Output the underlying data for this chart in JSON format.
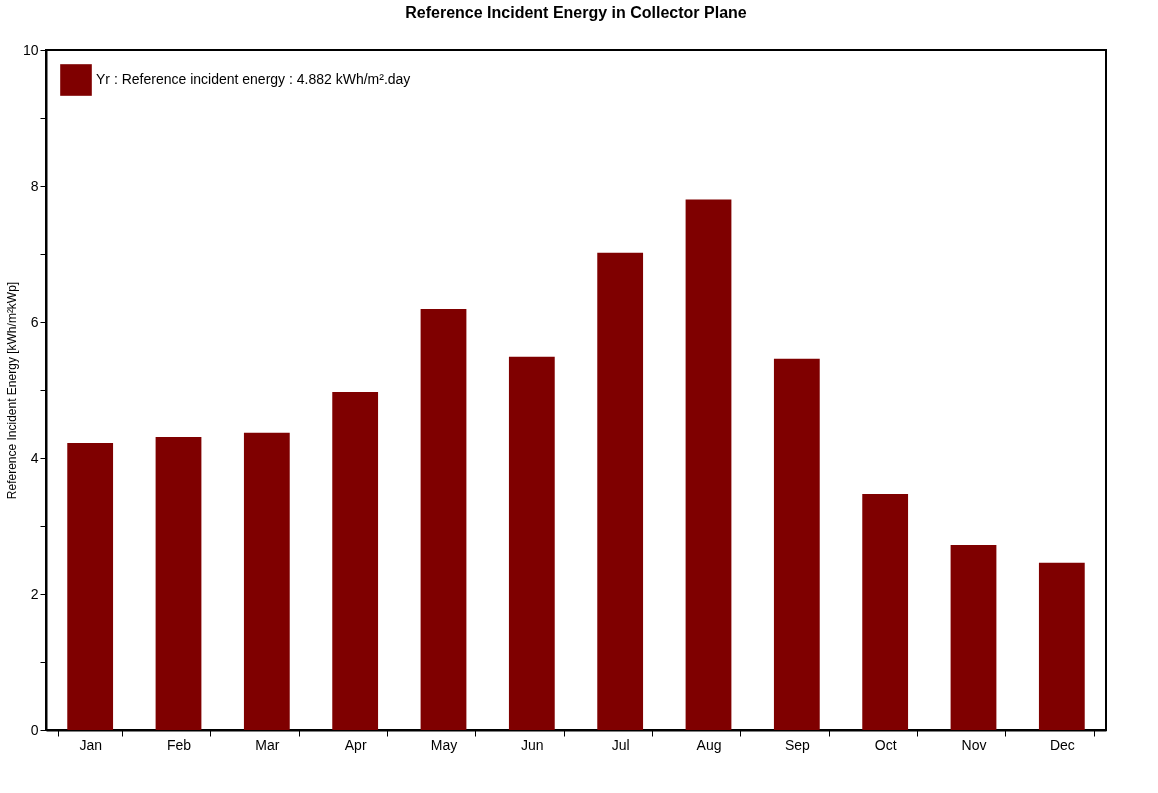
{
  "chart_data": {
    "type": "bar",
    "title": "Reference Incident Energy in Collector Plane",
    "ylabel": "Reference Incident Energy  [kWh/m²kWp]",
    "categories": [
      "Jan",
      "Feb",
      "Mar",
      "Apr",
      "May",
      "Jun",
      "Jul",
      "Aug",
      "Sep",
      "Oct",
      "Nov",
      "Dec"
    ],
    "series": [
      {
        "name": "Yr : Reference incident energy :  4.882 kWh/m².day",
        "color": "#7f0000",
        "values": [
          4.22,
          4.31,
          4.37,
          4.97,
          6.19,
          5.49,
          7.02,
          7.8,
          5.46,
          3.47,
          2.72,
          2.46
        ]
      }
    ],
    "ylim": [
      0,
      10
    ],
    "yticks": [
      0,
      {
        "value": 1,
        "label": null
      },
      2,
      {
        "value": 3,
        "label": null
      },
      4,
      {
        "value": 5,
        "label": null
      },
      6,
      {
        "value": 7,
        "label": null
      },
      8,
      {
        "value": 9,
        "label": null
      },
      10
    ],
    "grid": false,
    "legend": "top left"
  }
}
